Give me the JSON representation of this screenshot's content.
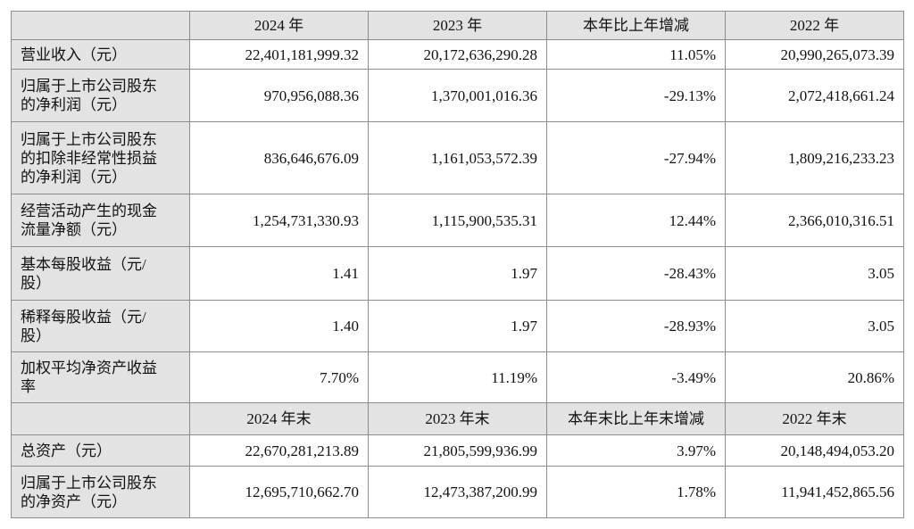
{
  "header1": [
    "2024 年",
    "2023 年",
    "本年比上年增减",
    "2022 年"
  ],
  "rows1": [
    {
      "label": [
        "营业收入（元）"
      ],
      "values": [
        "22,401,181,999.32",
        "20,172,636,290.28",
        "11.05%",
        "20,990,265,073.39"
      ]
    },
    {
      "label": [
        "归属于上市公司股东",
        "的净利润（元）"
      ],
      "values": [
        "970,956,088.36",
        "1,370,001,016.36",
        "-29.13%",
        "2,072,418,661.24"
      ]
    },
    {
      "label": [
        "归属于上市公司股东",
        "的扣除非经常性损益",
        "的净利润（元）"
      ],
      "values": [
        "836,646,676.09",
        "1,161,053,572.39",
        "-27.94%",
        "1,809,216,233.23"
      ]
    },
    {
      "label": [
        "经营活动产生的现金",
        "流量净额（元）"
      ],
      "values": [
        "1,254,731,330.93",
        "1,115,900,535.31",
        "12.44%",
        "2,366,010,316.51"
      ]
    },
    {
      "label": [
        "基本每股收益（元/",
        "股）"
      ],
      "values": [
        "1.41",
        "1.97",
        "-28.43%",
        "3.05"
      ]
    },
    {
      "label": [
        "稀释每股收益（元/",
        "股）"
      ],
      "values": [
        "1.40",
        "1.97",
        "-28.93%",
        "3.05"
      ]
    },
    {
      "label": [
        "加权平均净资产收益",
        "率"
      ],
      "values": [
        "7.70%",
        "11.19%",
        "-3.49%",
        "20.86%"
      ]
    }
  ],
  "header2": [
    "2024 年末",
    "2023 年末",
    "本年末比上年末增减",
    "2022 年末"
  ],
  "rows2": [
    {
      "label": [
        "总资产（元）"
      ],
      "values": [
        "22,670,281,213.89",
        "21,805,599,936.99",
        "3.97%",
        "20,148,494,053.20"
      ]
    },
    {
      "label": [
        "归属于上市公司股东",
        "的净资产（元）"
      ],
      "values": [
        "12,695,710,662.70",
        "12,473,387,200.99",
        "1.78%",
        "11,941,452,865.56"
      ]
    }
  ]
}
